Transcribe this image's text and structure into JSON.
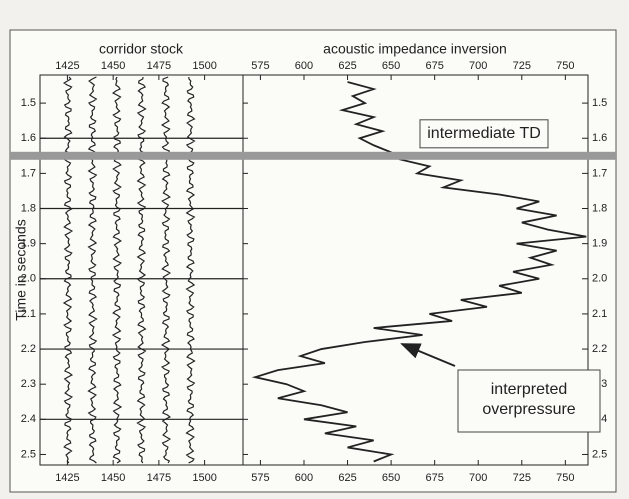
{
  "chart_data": [
    {
      "type": "wiggle",
      "title": "corridor stock",
      "ylabel": "Time in seconds",
      "xlim": [
        1410,
        1521
      ],
      "xticks": [
        1425,
        1450,
        1475,
        1500
      ],
      "ylim": [
        1.42,
        2.53
      ],
      "yticks": [
        1.5,
        1.6,
        1.7,
        1.8,
        1.9,
        {
          "value": 2,
          "label": "2.0"
        },
        2.1,
        2.2,
        2.3,
        2.4,
        2.5
      ],
      "hlines": [
        1.6,
        1.8,
        2.0,
        2.2,
        2.4
      ],
      "color": "#222"
    },
    {
      "type": "line",
      "title": "acoustic impedance inversion",
      "color": "#222",
      "xlim": [
        565,
        763
      ],
      "xticks": [
        575,
        600,
        625,
        650,
        675,
        700,
        725,
        750
      ],
      "ylim": [
        1.42,
        2.53
      ],
      "yticks": [
        1.5,
        1.6,
        1.7,
        1.8,
        1.9,
        {
          "value": 2,
          "label": "2.0"
        },
        2.1,
        2.2,
        2.3,
        2.4,
        2.5
      ],
      "y": [
        1.44,
        1.46,
        1.48,
        1.5,
        1.52,
        1.54,
        1.56,
        1.58,
        1.6,
        1.62,
        1.64,
        1.66,
        1.68,
        1.7,
        1.72,
        1.74,
        1.76,
        1.78,
        1.8,
        1.82,
        1.84,
        1.86,
        1.88,
        1.9,
        1.92,
        1.94,
        1.96,
        1.98,
        2.0,
        2.02,
        2.04,
        2.06,
        2.08,
        2.1,
        2.12,
        2.14,
        2.16,
        2.18,
        2.2,
        2.22,
        2.24,
        2.26,
        2.28,
        2.3,
        2.32,
        2.34,
        2.36,
        2.38,
        2.4,
        2.42,
        2.44,
        2.46,
        2.48,
        2.5,
        2.52
      ],
      "values": [
        625,
        640,
        628,
        635,
        622,
        640,
        630,
        645,
        632,
        640,
        650,
        655,
        672,
        665,
        690,
        680,
        712,
        735,
        722,
        745,
        725,
        740,
        762,
        722,
        745,
        730,
        742,
        720,
        735,
        712,
        725,
        690,
        705,
        672,
        685,
        640,
        668,
        635,
        610,
        598,
        612,
        585,
        572,
        590,
        600,
        585,
        610,
        625,
        600,
        630,
        612,
        640,
        625,
        650,
        640
      ],
      "annotations": [
        {
          "text": "intermediate TD",
          "y": 1.65
        },
        {
          "text": "interpreted overpressure"
        }
      ]
    }
  ]
}
